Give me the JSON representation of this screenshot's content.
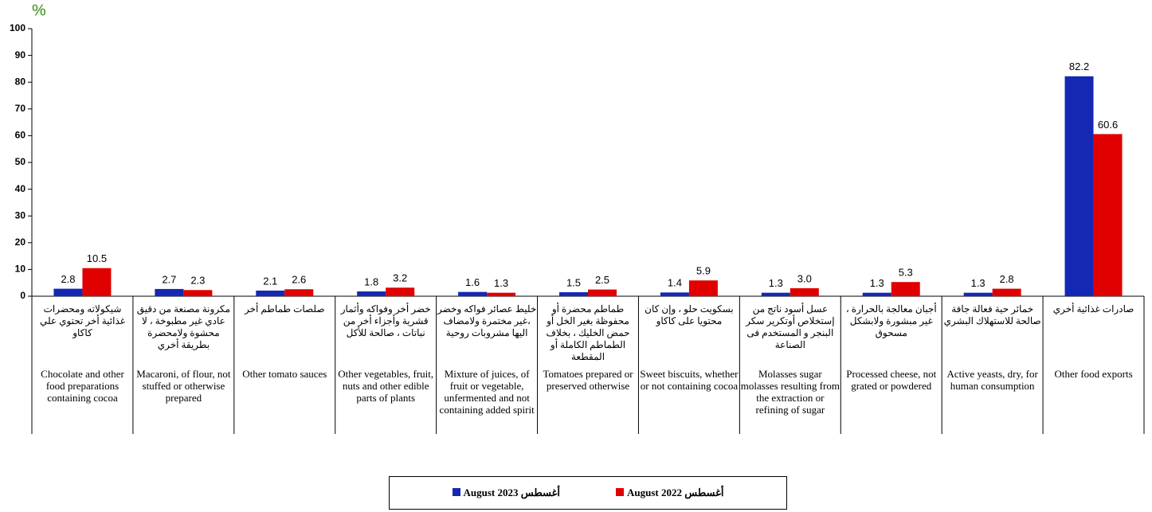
{
  "chart_data": {
    "type": "bar",
    "y_label": "%",
    "categories": [
      "Chocolate and other food preparations containing cocoa",
      "Macaroni, of flour, not stuffed or otherwise prepared",
      "Other tomato sauces",
      "Other vegetables, fruit, nuts and other edible parts of plants",
      "Mixture of juices, of fruit or vegetable, unfermented and not containing added spirit",
      "Tomatoes prepared or preserved otherwise",
      "Sweet biscuits, whether or not containing cocoa",
      "Molasses sugar molasses resulting from the extraction or refining of sugar",
      "Processed cheese, not grated or powdered",
      "Active yeasts, dry, for human consumption",
      "Other food exports"
    ],
    "categories_ar": [
      "شيكولاته ومحضرات غذائية أخر تحتوي علي كاكاو",
      "مكرونة مصنعة من دقيق عادي غير مطبوخة ، لا محشوة ولامحضرة بطريقة أخري",
      "صلصات طماطم أخر",
      "خضر أخر وفواكه وأثمار قشرية وأجزاء أخر من نباتات ، صالحة للأكل",
      "خليط عصائر فواكه وخضر ،غير مختمرة ولامضاف اليها مشروبات روحية",
      "طماطم محضرة أو محفوظة بغير الخل أو حمض الخليك ، بخلاف الطماطم الكاملة أو المقطعة",
      "بسكويت حلو ، وإن كان محتويا على كاكاو",
      "عسل أسود ناتج من إستخلاص أوتكرير سكر البنجر و المستخدم فى الصناعة",
      "أجبان معالجة بالحرارة ، غير مبشورة ولابشكل مسحوق",
      "خمائر حية فعالة جافة صالحة للاستهلاك البشري",
      "صادرات غذائية أخري"
    ],
    "series": [
      {
        "name": "August 2023 أغسطس",
        "color": "#1428b4",
        "values": [
          2.8,
          2.7,
          2.1,
          1.8,
          1.6,
          1.5,
          1.4,
          1.3,
          1.3,
          1.3,
          82.2
        ]
      },
      {
        "name": "August 2022 أغسطس",
        "color": "#e00000",
        "values": [
          10.5,
          2.3,
          2.6,
          3.2,
          1.3,
          2.5,
          5.9,
          3.0,
          5.3,
          2.8,
          60.6
        ],
        "value_labels": [
          "10.5",
          "2.3",
          "2.6",
          "3.2",
          "1.3",
          "2.5",
          "5.9",
          "3.0",
          "5.3",
          "2.8",
          "60.6"
        ]
      }
    ],
    "ylim": [
      0,
      100
    ],
    "yticks": [
      0,
      10,
      20,
      30,
      40,
      50,
      60,
      70,
      80,
      90,
      100
    ],
    "grid": false,
    "legend": "bottom"
  }
}
